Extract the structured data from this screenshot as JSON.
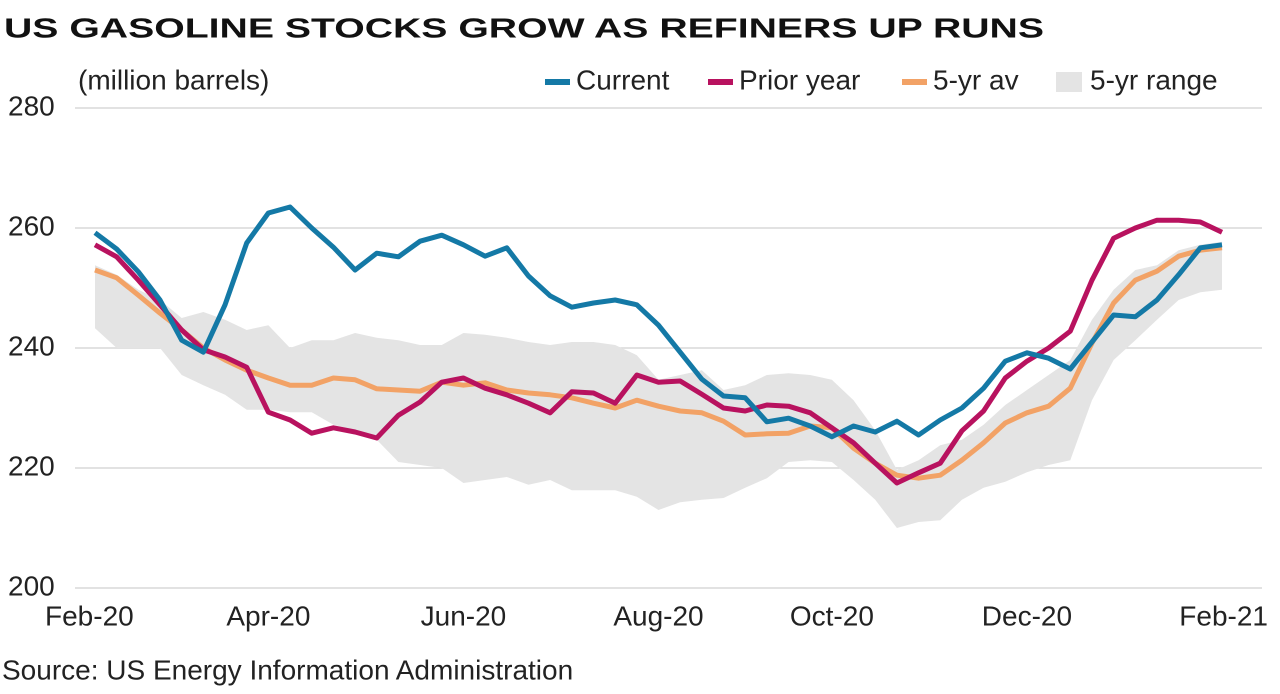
{
  "chart_data": {
    "type": "line",
    "title": "US GASOLINE STOCKS GROW AS REFINERS UP RUNS",
    "y_axis_label": "(million barrels)",
    "source": "Source: US Energy Information Administration",
    "categories": [
      "Feb-20",
      null,
      null,
      null,
      null,
      null,
      null,
      null,
      "Apr-20",
      null,
      null,
      null,
      null,
      null,
      null,
      null,
      null,
      "Jun-20",
      null,
      null,
      null,
      null,
      null,
      null,
      null,
      null,
      "Aug-20",
      null,
      null,
      null,
      null,
      null,
      null,
      null,
      "Oct-20",
      null,
      null,
      null,
      null,
      null,
      null,
      null,
      null,
      "Dec-20",
      null,
      null,
      null,
      null,
      null,
      null,
      null,
      null,
      "Feb-21"
    ],
    "ylim": [
      200,
      280
    ],
    "yticks": [
      200,
      220,
      240,
      260,
      280
    ],
    "grid": true,
    "range": {
      "name": "5-yr range",
      "color": "#e4e4e4",
      "high": [
        253.8,
        252.2,
        249.7,
        248,
        245,
        246,
        244.7,
        243,
        243.8,
        240,
        241.3,
        241.3,
        242.5,
        241.7,
        241.3,
        240.5,
        240.5,
        242.5,
        242.2,
        241.7,
        241,
        240.5,
        241,
        241,
        240.5,
        238.8,
        234.7,
        235.5,
        236.3,
        233,
        233.8,
        235.5,
        235.8,
        235.5,
        234.7,
        231.3,
        226.3,
        219.7,
        221.3,
        223.8,
        224.7,
        227.2,
        230.5,
        233,
        235.5,
        238,
        244.7,
        249.7,
        253,
        253.8,
        256.3,
        257.2,
        257.7
      ],
      "low": [
        243.3,
        240,
        240,
        240,
        235.5,
        233.8,
        232.2,
        229.7,
        229.7,
        229.3,
        229.3,
        227.2,
        226.3,
        224.7,
        221,
        220.5,
        220,
        217.5,
        218,
        218.5,
        217.2,
        218,
        216.3,
        216.3,
        216.3,
        215.2,
        213,
        214.3,
        214.7,
        215,
        216.7,
        218.3,
        221,
        221.3,
        221,
        218,
        214.7,
        210,
        211,
        211.3,
        214.7,
        216.7,
        217.7,
        219.3,
        220.5,
        221.3,
        231.3,
        238,
        241.3,
        244.7,
        248,
        249.3,
        249.7
      ]
    },
    "series": [
      {
        "name": "5-yr av",
        "color": "#f2a266",
        "values": [
          253,
          251.7,
          248.8,
          245.8,
          243,
          240,
          238,
          236.3,
          235,
          233.8,
          233.8,
          235,
          234.7,
          233.2,
          233,
          232.8,
          234.3,
          233.8,
          234.2,
          233,
          232.5,
          232.2,
          231.7,
          230.8,
          230,
          231.3,
          230.3,
          229.5,
          229.2,
          227.8,
          225.5,
          225.7,
          225.8,
          227,
          226.7,
          223.3,
          220.8,
          218.8,
          218.3,
          218.8,
          221.3,
          224.2,
          227.5,
          229.2,
          230.3,
          233.3,
          240.8,
          247.5,
          251.3,
          252.8,
          255.3,
          256.3,
          256.7
        ]
      },
      {
        "name": "Prior year",
        "color": "#b8125f",
        "values": [
          257.2,
          255.2,
          251.3,
          247.2,
          243,
          239.7,
          238.5,
          236.8,
          229.3,
          228,
          225.8,
          226.7,
          226,
          225,
          228.8,
          231,
          234.3,
          235,
          233.3,
          232.2,
          230.8,
          229.2,
          232.7,
          232.5,
          230.8,
          235.5,
          234.3,
          234.5,
          232.3,
          230,
          229.5,
          230.5,
          230.3,
          229.2,
          226.7,
          224.2,
          220.8,
          217.5,
          219.2,
          220.8,
          226.2,
          229.5,
          235,
          237.8,
          240,
          242.8,
          251.3,
          258.3,
          260,
          261.3,
          261.3,
          261,
          259.3
        ]
      },
      {
        "name": "Current",
        "color": "#1479a6",
        "values": [
          259.2,
          256.5,
          252.7,
          248,
          241.3,
          239.3,
          247.2,
          257.5,
          262.5,
          263.5,
          260,
          256.8,
          253,
          255.8,
          255.2,
          257.8,
          258.8,
          257.2,
          255.3,
          256.7,
          252,
          248.7,
          246.8,
          247.5,
          248,
          247.2,
          243.8,
          239.3,
          234.8,
          232,
          231.7,
          227.7,
          228.3,
          227,
          225.2,
          227,
          226,
          227.8,
          225.5,
          228,
          230,
          233.3,
          237.8,
          239.2,
          238.3,
          236.5,
          241,
          245.5,
          245.2,
          248,
          252.2,
          256.7,
          257.2
        ]
      }
    ]
  }
}
